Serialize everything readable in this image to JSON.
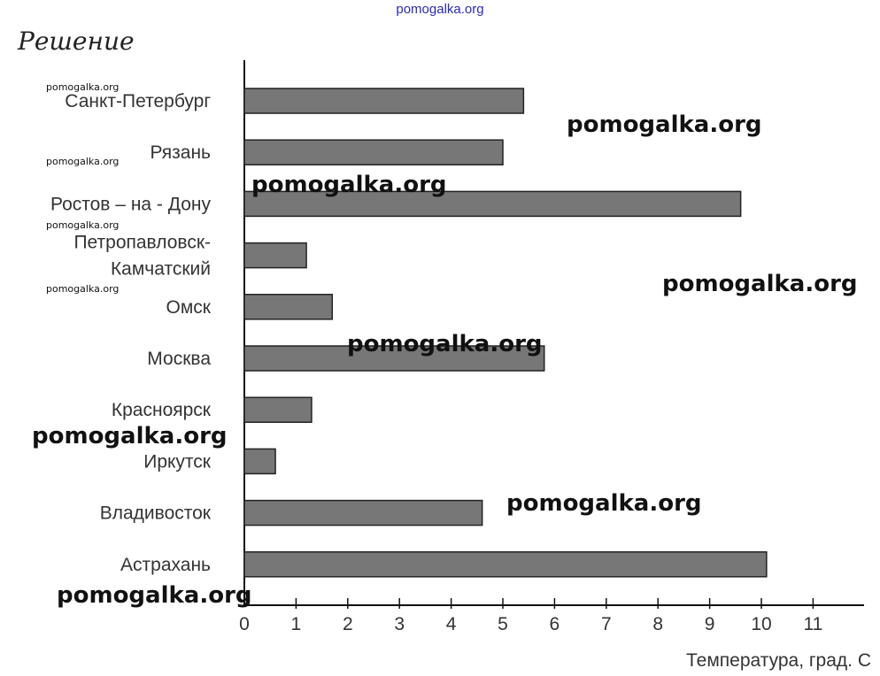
{
  "top_watermark": "pomogalka.org",
  "heading": "Решение",
  "watermarks": [
    {
      "text": "pomogalka.org",
      "size": "small"
    },
    {
      "text": "pomogalka.org",
      "size": "big"
    },
    {
      "text": "pomogalka.org",
      "size": "small"
    },
    {
      "text": "pomogalka.org",
      "size": "big"
    },
    {
      "text": "pomogalka.org",
      "size": "small"
    },
    {
      "text": "pomogalka.org",
      "size": "small"
    },
    {
      "text": "pomogalka.org",
      "size": "big"
    },
    {
      "text": "pomogalka.org",
      "size": "big"
    },
    {
      "text": "pomogalka.org",
      "size": "big"
    },
    {
      "text": "pomogalka.org",
      "size": "big"
    },
    {
      "text": "pomogalka.org",
      "size": "big"
    }
  ],
  "chart_data": {
    "type": "bar",
    "orientation": "horizontal",
    "title": "",
    "xlabel": "Температура, град. С",
    "ylabel": "",
    "xlim": [
      0,
      12
    ],
    "xticks": [
      0,
      1,
      2,
      3,
      4,
      5,
      6,
      7,
      8,
      9,
      10,
      11
    ],
    "grid": false,
    "categories": [
      [
        "Санкт-Петербург"
      ],
      [
        "Рязань"
      ],
      [
        "Ростов – на - Дону"
      ],
      [
        "Петропавловск-",
        "Камчатский"
      ],
      [
        "Омск"
      ],
      [
        "Москва"
      ],
      [
        "Красноярск"
      ],
      [
        "Иркутск"
      ],
      [
        "Владивосток"
      ],
      [
        "Астрахань"
      ]
    ],
    "values": [
      5.4,
      5.0,
      9.6,
      1.2,
      1.7,
      5.8,
      1.3,
      0.6,
      4.6,
      10.1
    ],
    "colors": {
      "bar": "#777777",
      "stroke": "#222222",
      "axis": "#111111",
      "text": "#333333"
    }
  }
}
